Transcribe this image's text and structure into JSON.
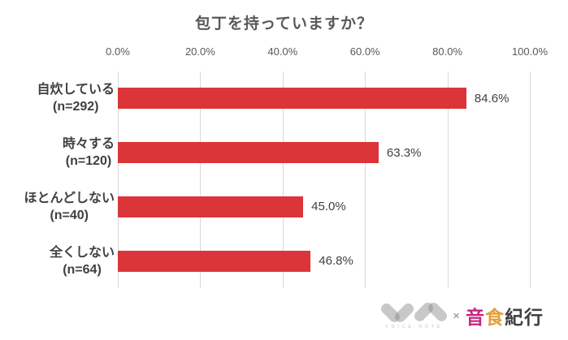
{
  "title": "包丁を持っていますか？",
  "chart_data": {
    "type": "bar",
    "orientation": "horizontal",
    "title": "包丁を持っていますか？",
    "categories": [
      "自炊している",
      "時々する",
      "ほとんどしない",
      "全くしない"
    ],
    "sample_labels": [
      "(n=292)",
      "(n=120)",
      "(n=40)",
      "(n=64)"
    ],
    "values": [
      84.6,
      63.3,
      45.0,
      46.8
    ],
    "value_labels": [
      "84.6%",
      "63.3%",
      "45.0%",
      "46.8%"
    ],
    "xlim": [
      0,
      100
    ],
    "x_ticks": [
      "0.0%",
      "20.0%",
      "40.0%",
      "60.0%",
      "80.0%",
      "100.0%"
    ],
    "grid": true,
    "legend": "none",
    "bar_color": "#DB3539",
    "gridline_color": "#D9D9D9"
  },
  "logo": {
    "voice_note_text": "VOICE NOTE",
    "cross": "×",
    "brand": [
      {
        "char": "音",
        "color": "#C9247E"
      },
      {
        "char": "食",
        "color": "#E0A13E"
      },
      {
        "char": "紀行",
        "color": "#3F3F3F"
      }
    ]
  }
}
